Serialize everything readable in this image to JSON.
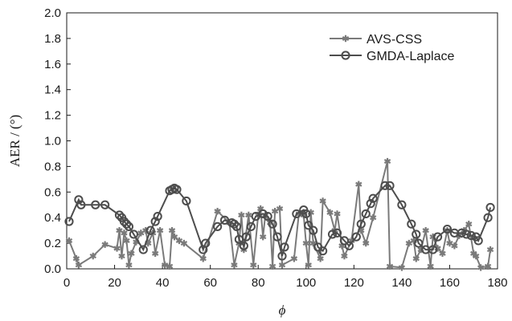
{
  "chart_data": {
    "type": "line",
    "xlabel": "ϕ",
    "ylabel": "AER / (°)",
    "xlim": [
      0,
      180
    ],
    "ylim": [
      0,
      2.0
    ],
    "x_ticks": [
      "0",
      "20",
      "40",
      "60",
      "80",
      "100",
      "120",
      "140",
      "160",
      "180"
    ],
    "y_ticks": [
      "0.0",
      "0.2",
      "0.4",
      "0.6",
      "0.8",
      "1.0",
      "1.2",
      "1.4",
      "1.6",
      "1.8",
      "2.0"
    ],
    "grid": false,
    "legend_position": "top-right",
    "series": [
      {
        "name": "AVS-CSS",
        "marker": "star",
        "color": "#7a7a7a",
        "points": [
          [
            1,
            0.22
          ],
          [
            4,
            0.08
          ],
          [
            5,
            0.03
          ],
          [
            11,
            0.1
          ],
          [
            16,
            0.19
          ],
          [
            21,
            0.16
          ],
          [
            22,
            0.3
          ],
          [
            23,
            0.1
          ],
          [
            24,
            0.28
          ],
          [
            25,
            0.22
          ],
          [
            26,
            0.03
          ],
          [
            27,
            0.12
          ],
          [
            29,
            0.21
          ],
          [
            31,
            0.28
          ],
          [
            33,
            0.3
          ],
          [
            34,
            0.2
          ],
          [
            36,
            0.28
          ],
          [
            37,
            0.12
          ],
          [
            39,
            0.3
          ],
          [
            41,
            0.03
          ],
          [
            43,
            0.02
          ],
          [
            44,
            0.3
          ],
          [
            45,
            0.25
          ],
          [
            47,
            0.22
          ],
          [
            49,
            0.2
          ],
          [
            57,
            0.08
          ],
          [
            63,
            0.45
          ],
          [
            68,
            0.36
          ],
          [
            70,
            0.03
          ],
          [
            72,
            0.2
          ],
          [
            73,
            0.42
          ],
          [
            74,
            0.15
          ],
          [
            76,
            0.42
          ],
          [
            78,
            0.03
          ],
          [
            80,
            0.42
          ],
          [
            81,
            0.47
          ],
          [
            82,
            0.25
          ],
          [
            83,
            0.42
          ],
          [
            85,
            0.36
          ],
          [
            86,
            0.02
          ],
          [
            87,
            0.45
          ],
          [
            89,
            0.47
          ],
          [
            90,
            0.03
          ],
          [
            95,
            0.08
          ],
          [
            97,
            0.43
          ],
          [
            99,
            0.42
          ],
          [
            100,
            0.2
          ],
          [
            101,
            0.03
          ],
          [
            102,
            0.44
          ],
          [
            103,
            0.2
          ],
          [
            106,
            0.08
          ],
          [
            107,
            0.53
          ],
          [
            110,
            0.44
          ],
          [
            112,
            0.3
          ],
          [
            113,
            0.43
          ],
          [
            115,
            0.18
          ],
          [
            116,
            0.1
          ],
          [
            119,
            0.22
          ],
          [
            122,
            0.66
          ],
          [
            123,
            0.3
          ],
          [
            125,
            0.2
          ],
          [
            128,
            0.4
          ],
          [
            134,
            0.84
          ],
          [
            135,
            0.02
          ],
          [
            140,
            0.01
          ],
          [
            143,
            0.2
          ],
          [
            145,
            0.22
          ],
          [
            146,
            0.08
          ],
          [
            148,
            0.15
          ],
          [
            150,
            0.3
          ],
          [
            152,
            0.02
          ],
          [
            153,
            0.25
          ],
          [
            155,
            0.16
          ],
          [
            157,
            0.12
          ],
          [
            159,
            0.3
          ],
          [
            160,
            0.2
          ],
          [
            162,
            0.18
          ],
          [
            164,
            0.26
          ],
          [
            166,
            0.3
          ],
          [
            168,
            0.35
          ],
          [
            170,
            0.12
          ],
          [
            171,
            0.1
          ],
          [
            173,
            0.01
          ],
          [
            176,
            0.02
          ],
          [
            177,
            0.15
          ]
        ]
      },
      {
        "name": "GMDA-Laplace",
        "marker": "circle",
        "color": "#4d4d4d",
        "points": [
          [
            1,
            0.37
          ],
          [
            5,
            0.54
          ],
          [
            6,
            0.5
          ],
          [
            12,
            0.5
          ],
          [
            16,
            0.5
          ],
          [
            22,
            0.42
          ],
          [
            23,
            0.4
          ],
          [
            24,
            0.37
          ],
          [
            25,
            0.35
          ],
          [
            26,
            0.33
          ],
          [
            28,
            0.27
          ],
          [
            32,
            0.15
          ],
          [
            35,
            0.3
          ],
          [
            37,
            0.37
          ],
          [
            38,
            0.41
          ],
          [
            43,
            0.61
          ],
          [
            44,
            0.62
          ],
          [
            45,
            0.63
          ],
          [
            46,
            0.62
          ],
          [
            50,
            0.53
          ],
          [
            57,
            0.15
          ],
          [
            58,
            0.2
          ],
          [
            63,
            0.33
          ],
          [
            66,
            0.38
          ],
          [
            69,
            0.36
          ],
          [
            70,
            0.35
          ],
          [
            71,
            0.33
          ],
          [
            72,
            0.23
          ],
          [
            74,
            0.18
          ],
          [
            75,
            0.25
          ],
          [
            77,
            0.33
          ],
          [
            79,
            0.41
          ],
          [
            82,
            0.43
          ],
          [
            84,
            0.41
          ],
          [
            86,
            0.35
          ],
          [
            88,
            0.25
          ],
          [
            90,
            0.1
          ],
          [
            91,
            0.17
          ],
          [
            96,
            0.43
          ],
          [
            99,
            0.46
          ],
          [
            100,
            0.43
          ],
          [
            101,
            0.34
          ],
          [
            103,
            0.3
          ],
          [
            105,
            0.17
          ],
          [
            107,
            0.14
          ],
          [
            111,
            0.27
          ],
          [
            113,
            0.28
          ],
          [
            116,
            0.22
          ],
          [
            118,
            0.18
          ],
          [
            121,
            0.25
          ],
          [
            123,
            0.35
          ],
          [
            125,
            0.43
          ],
          [
            127,
            0.51
          ],
          [
            128,
            0.55
          ],
          [
            133,
            0.65
          ],
          [
            135,
            0.65
          ],
          [
            140,
            0.5
          ],
          [
            144,
            0.35
          ],
          [
            146,
            0.27
          ],
          [
            147,
            0.2
          ],
          [
            150,
            0.15
          ],
          [
            153,
            0.15
          ],
          [
            155,
            0.25
          ],
          [
            159,
            0.31
          ],
          [
            162,
            0.28
          ],
          [
            165,
            0.28
          ],
          [
            167,
            0.27
          ],
          [
            169,
            0.26
          ],
          [
            171,
            0.25
          ],
          [
            172,
            0.22
          ],
          [
            176,
            0.4
          ],
          [
            177,
            0.48
          ]
        ]
      }
    ]
  }
}
